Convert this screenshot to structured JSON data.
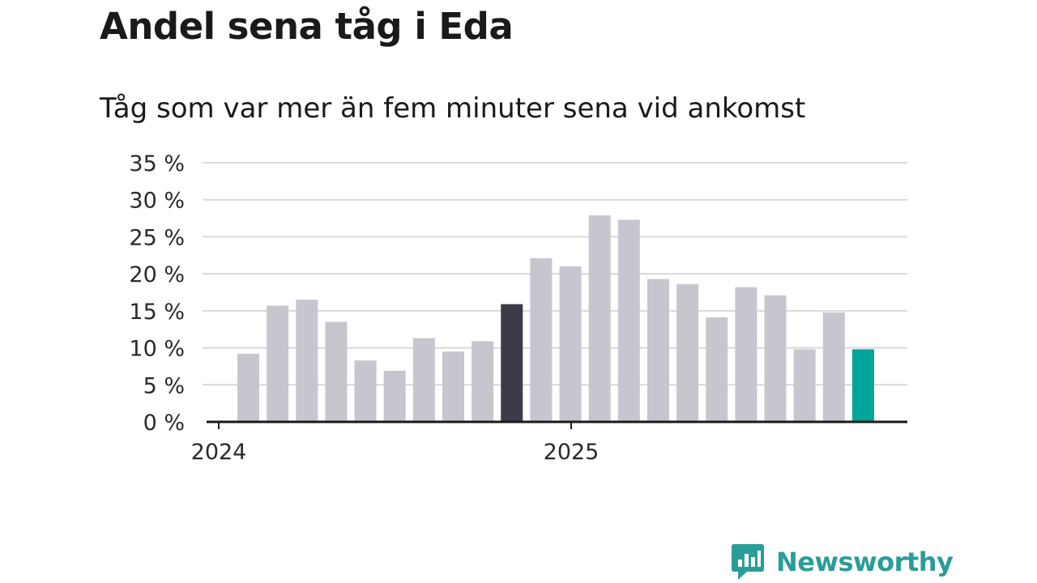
{
  "title": "Andel sena tåg i Eda",
  "subtitle": "Tåg som var mer än fem minuter sena vid ankomst",
  "brand": {
    "name": "Newsworthy",
    "icon": "newsworthy-logo-icon",
    "color": "#2a9d97"
  },
  "colors": {
    "bar_default": "#c7c6cf",
    "bar_highlight": "#3d3b48",
    "bar_latest": "#00a59a",
    "grid": "#d9d9dc",
    "axis": "#1a1a1a"
  },
  "chart_data": {
    "type": "bar",
    "title": "Andel sena tåg i Eda",
    "subtitle": "Tåg som var mer än fem minuter sena vid ankomst",
    "x_tick_labels": [
      "2024",
      "2025"
    ],
    "y_ticks": [
      "0 %",
      "5 %",
      "10 %",
      "15 %",
      "20 %",
      "25 %",
      "30 %",
      "35 %"
    ],
    "ylim": [
      0,
      35
    ],
    "grid": true,
    "values": [
      9.2,
      15.7,
      16.5,
      13.5,
      8.3,
      6.9,
      11.3,
      9.5,
      10.9,
      15.9,
      22.1,
      21.0,
      27.9,
      27.3,
      19.3,
      18.6,
      14.1,
      18.2,
      17.1,
      9.8,
      14.8,
      9.8
    ],
    "highlight_index": 9,
    "latest_index": 21
  }
}
